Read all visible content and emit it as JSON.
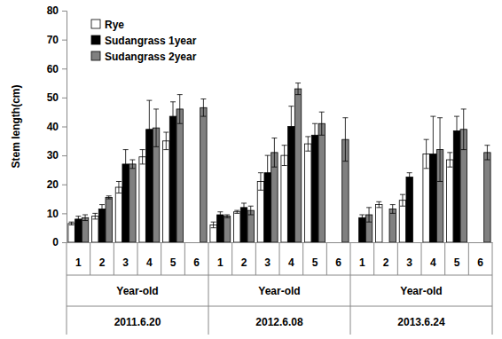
{
  "chart_data": {
    "type": "bar",
    "y_label": "Stem length(cm)",
    "categories": [
      "1",
      "2",
      "3",
      "4",
      "5",
      "6",
      "1",
      "2",
      "3",
      "4",
      "5",
      "6",
      "1",
      "2",
      "3",
      "4",
      "5",
      "6"
    ],
    "groups": [
      {
        "name": "2011.6.20",
        "label": "Year-old"
      },
      {
        "name": "2012.6.08",
        "label": "Year-old"
      },
      {
        "name": "2013.6.24",
        "label": "Year-old"
      }
    ],
    "series": [
      {
        "name": "Rye",
        "color": "#ffffff",
        "values": [
          6.5,
          9,
          19,
          29.5,
          35,
          null,
          6,
          10.5,
          21,
          30,
          34,
          null,
          null,
          13,
          14.5,
          30.5,
          28.5,
          null
        ],
        "errors": [
          0.5,
          1,
          2,
          2.5,
          3,
          null,
          1,
          0.5,
          3,
          3.5,
          2.5,
          null,
          null,
          1,
          2,
          5,
          2.5,
          null
        ]
      },
      {
        "name": "Sudangrass 1year",
        "color": "#000000",
        "values": [
          8,
          11.5,
          27,
          39,
          43.5,
          null,
          9.5,
          12,
          24,
          40,
          37,
          null,
          8.5,
          null,
          22.5,
          30.5,
          38.5,
          null
        ],
        "errors": [
          1,
          1.5,
          5,
          10,
          5,
          null,
          1,
          1.5,
          6,
          7,
          4,
          null,
          1,
          null,
          1.5,
          13,
          5,
          null
        ]
      },
      {
        "name": "Sudangrass 2year",
        "color": "#808080",
        "values": [
          8.5,
          15.5,
          27,
          39.5,
          46,
          46.5,
          9,
          11,
          31,
          53,
          41,
          35.5,
          9.5,
          11.5,
          null,
          32,
          39,
          31
        ],
        "errors": [
          1,
          0.5,
          1.5,
          6.5,
          5,
          3,
          0.5,
          1.5,
          5,
          2,
          4,
          7.5,
          2.5,
          1.5,
          null,
          11,
          7,
          2.5
        ]
      }
    ],
    "ylim": [
      0,
      80
    ],
    "yticks": [
      0,
      10,
      20,
      30,
      40,
      50,
      60,
      70,
      80
    ],
    "legend": "top-left",
    "grid": false
  }
}
